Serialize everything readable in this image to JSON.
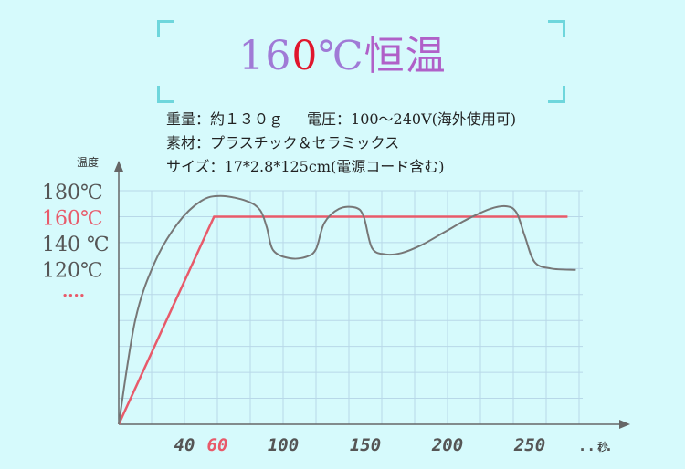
{
  "title": {
    "a": "16",
    "b": "0",
    "c": "℃",
    "d": "恒温"
  },
  "specs": {
    "weight": "重量：約１３０ｇ",
    "voltage": "電圧：100〜240V(海外使用可)",
    "material": "素材：プラスチック＆セラミックス",
    "size": "サイズ：17*2.8*125cm(電源コード含む)"
  },
  "colors": {
    "background": "#d6fafc",
    "accent": "#e85a6a",
    "curve": "#777777",
    "grid": "#b8d8e8"
  },
  "chart_data": {
    "type": "line",
    "title": "",
    "xlabel": "秒",
    "ylabel": "温度",
    "xlim": [
      0,
      300
    ],
    "ylim": [
      0,
      180
    ],
    "y_ticks": [
      {
        "value": 180,
        "label": "180℃",
        "highlight": false
      },
      {
        "value": 160,
        "label": "160℃",
        "highlight": true
      },
      {
        "value": 140,
        "label": "140 ℃",
        "highlight": false
      },
      {
        "value": 120,
        "label": "120℃",
        "highlight": false
      },
      {
        "value": 100,
        "label": "....",
        "highlight": true
      }
    ],
    "x_ticks": [
      {
        "value": 40,
        "label": "40",
        "highlight": false
      },
      {
        "value": 60,
        "label": "60",
        "highlight": true
      },
      {
        "value": 100,
        "label": "100",
        "highlight": false
      },
      {
        "value": 150,
        "label": "150",
        "highlight": false
      },
      {
        "value": 200,
        "label": "200",
        "highlight": false
      },
      {
        "value": 250,
        "label": "250",
        "highlight": false
      },
      {
        "value": 290,
        "label": "....",
        "highlight": false
      }
    ],
    "series": [
      {
        "color": "#e85a6a",
        "points": [
          [
            0,
            0
          ],
          [
            58,
            160
          ],
          [
            273,
            160
          ]
        ]
      },
      {
        "color": "#777777",
        "points": [
          [
            0,
            0
          ],
          [
            10,
            80
          ],
          [
            22,
            125
          ],
          [
            36,
            155
          ],
          [
            50,
            172
          ],
          [
            62,
            176
          ],
          [
            78,
            172
          ],
          [
            86,
            165
          ],
          [
            90,
            152
          ],
          [
            94,
            134
          ],
          [
            104,
            128
          ],
          [
            114,
            129
          ],
          [
            120,
            135
          ],
          [
            125,
            155
          ],
          [
            134,
            166
          ],
          [
            144,
            167
          ],
          [
            149,
            160
          ],
          [
            154,
            136
          ],
          [
            162,
            131
          ],
          [
            172,
            132
          ],
          [
            184,
            138
          ],
          [
            198,
            148
          ],
          [
            212,
            158
          ],
          [
            226,
            166
          ],
          [
            236,
            168
          ],
          [
            242,
            163
          ],
          [
            247,
            145
          ],
          [
            253,
            125
          ],
          [
            263,
            120
          ],
          [
            278,
            119
          ]
        ]
      }
    ]
  }
}
